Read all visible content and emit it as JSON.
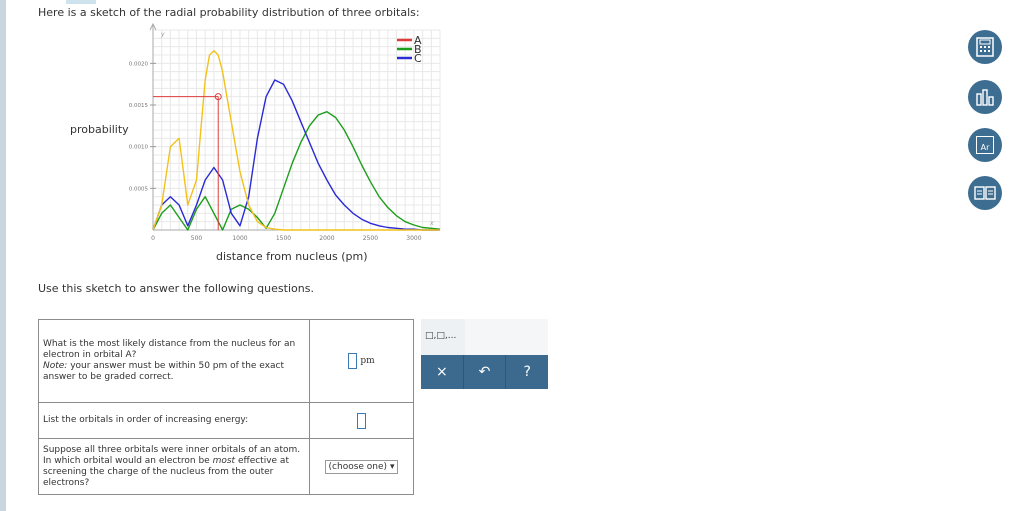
{
  "intro_text": "Here is a sketch of the radial probability distribution of three orbitals:",
  "use_text": "Use this sketch to answer the following questions.",
  "chart_data": {
    "type": "line",
    "ylabel": "probability",
    "xlabel": "distance from nucleus (pm)",
    "x_axis_letter": "x",
    "y_axis_letter": "y",
    "xlim": [
      0,
      3300
    ],
    "ylim": [
      0,
      0.0024
    ],
    "x_ticks": [
      0,
      500,
      1000,
      1500,
      2000,
      2500,
      3000
    ],
    "x_tick_labels": [
      "0",
      "500",
      "1000",
      "1500",
      "2000",
      "2500",
      "3000"
    ],
    "y_ticks": [
      0.0005,
      0.001,
      0.0015,
      0.002
    ],
    "y_tick_labels": [
      "0.0005",
      "0.0010",
      "0.0015",
      "0.0020"
    ],
    "legend_position": "top-right",
    "grid": true,
    "crosshair": {
      "x": 750,
      "y": 0.0016
    },
    "series": [
      {
        "name": "A",
        "color": "#e03c3c",
        "x": [],
        "y": []
      },
      {
        "name": "B",
        "color": "#1c9e1c",
        "x": [
          0,
          100,
          200,
          300,
          400,
          500,
          600,
          700,
          800,
          900,
          1000,
          1100,
          1200,
          1300,
          1400,
          1500,
          1600,
          1700,
          1800,
          1900,
          2000,
          2100,
          2200,
          2300,
          2400,
          2500,
          2600,
          2700,
          2800,
          2900,
          3000,
          3100,
          3200,
          3300
        ],
        "y": [
          0,
          0.0002,
          0.0003,
          0.00015,
          0,
          0.00025,
          0.0004,
          0.0002,
          0,
          0.00025,
          0.0003,
          0.00025,
          0.00015,
          2e-05,
          0.0002,
          0.0005,
          0.0008,
          0.00105,
          0.00125,
          0.00138,
          0.00142,
          0.00135,
          0.0012,
          0.001,
          0.00078,
          0.00058,
          0.0004,
          0.00027,
          0.00017,
          0.0001,
          6e-05,
          3e-05,
          2e-05,
          1e-05
        ]
      },
      {
        "name": "C",
        "color": "#2a2ad6",
        "x": [
          0,
          100,
          200,
          300,
          400,
          500,
          600,
          700,
          800,
          900,
          1000,
          1100,
          1200,
          1300,
          1400,
          1500,
          1600,
          1700,
          1800,
          1900,
          2000,
          2100,
          2200,
          2300,
          2400,
          2500,
          2600,
          2700,
          2800,
          2900,
          3000,
          3100,
          3200,
          3300
        ],
        "y": [
          0,
          0.0003,
          0.0004,
          0.0003,
          5e-05,
          0.0003,
          0.0006,
          0.00075,
          0.0006,
          0.0002,
          5e-05,
          0.0004,
          0.0011,
          0.0016,
          0.0018,
          0.00175,
          0.00155,
          0.0013,
          0.00105,
          0.0008,
          0.0006,
          0.00042,
          0.0003,
          0.0002,
          0.00013,
          8e-05,
          5e-05,
          3e-05,
          2e-05,
          1e-05,
          1e-05,
          0,
          0,
          0
        ]
      },
      {
        "name": "",
        "color": "#f2c21a",
        "x": [
          0,
          100,
          200,
          300,
          400,
          500,
          550,
          600,
          650,
          700,
          750,
          800,
          850,
          900,
          950,
          1000,
          1050,
          1100,
          1200,
          1300,
          1400,
          1500,
          1600,
          1800,
          2000,
          2200,
          2500,
          3000,
          3300
        ],
        "y": [
          0,
          0.0003,
          0.001,
          0.0011,
          0.0003,
          0.0006,
          0.0012,
          0.0018,
          0.0021,
          0.00215,
          0.0021,
          0.0019,
          0.0016,
          0.0013,
          0.001,
          0.0007,
          0.0005,
          0.0003,
          0.0001,
          3e-05,
          1e-05,
          0,
          0,
          0,
          0,
          0,
          0,
          0,
          0
        ]
      }
    ]
  },
  "questions": [
    {
      "text": "What is the most likely distance from the nucleus for an electron in orbital A?",
      "note_label": "Note:",
      "note_text": " your answer must be within 50 pm of the exact answer to be graded correct.",
      "unit": "pm"
    },
    {
      "text": "List the orbitals in order of increasing energy:"
    },
    {
      "text_before": "Suppose all three orbitals were inner orbitals of an atom. In which orbital would an electron be ",
      "text_em": "most",
      "text_after": " effective at screening the charge of the nucleus from the outer electrons?",
      "select_value": "(choose one)"
    }
  ],
  "toolbox": {
    "template_glyph": "□,□,...",
    "clear_glyph": "×",
    "undo_glyph": "↶",
    "help_glyph": "?"
  },
  "side_icons": {
    "calculator": "calculator-icon",
    "chart": "bar-chart-icon",
    "periodic": "periodic-table-icon",
    "periodic_label": "Ar",
    "reference": "reference-book-icon"
  }
}
